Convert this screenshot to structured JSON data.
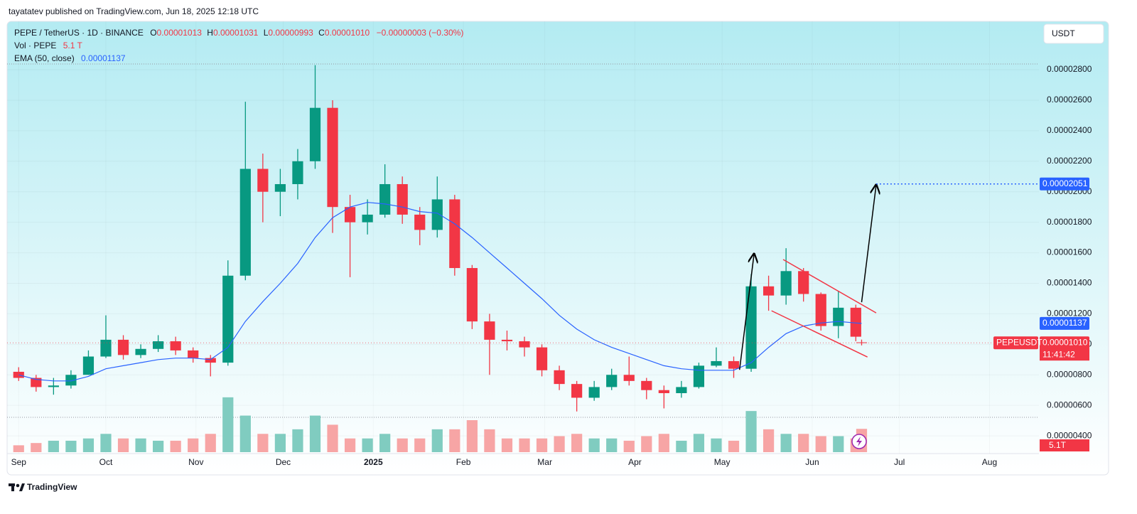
{
  "header": {
    "published": "tayatatev published on TradingView.com, Jun 18, 2025 12:18 UTC",
    "currency_button": "USDT",
    "footer_brand": "TradingView"
  },
  "legend": {
    "symbol": "PEPE / TetherUS · 1D · BINANCE",
    "ohlc": [
      {
        "label": "O",
        "value": "0.00001013"
      },
      {
        "label": "H",
        "value": "0.00001031"
      },
      {
        "label": "L",
        "value": "0.00000993"
      },
      {
        "label": "C",
        "value": "0.00001010"
      }
    ],
    "change": "−0.00000003 (−0.30%)",
    "volume_label": "Vol · PEPE",
    "volume_value": "5.1 T",
    "ema_label": "EMA (50, close)",
    "ema_value": "0.00001137"
  },
  "chart_data": {
    "type": "candlestick",
    "x": [
      "2024-09-01",
      "2024-09-07",
      "2024-09-13",
      "2024-09-19",
      "2024-09-25",
      "2024-10-01",
      "2024-10-07",
      "2024-10-13",
      "2024-10-19",
      "2024-10-25",
      "2024-10-31",
      "2024-11-06",
      "2024-11-12",
      "2024-11-18",
      "2024-11-24",
      "2024-11-30",
      "2024-12-06",
      "2024-12-12",
      "2024-12-18",
      "2024-12-24",
      "2024-12-30",
      "2025-01-05",
      "2025-01-11",
      "2025-01-17",
      "2025-01-23",
      "2025-01-29",
      "2025-02-04",
      "2025-02-10",
      "2025-02-16",
      "2025-02-22",
      "2025-02-28",
      "2025-03-06",
      "2025-03-12",
      "2025-03-18",
      "2025-03-24",
      "2025-03-30",
      "2025-04-05",
      "2025-04-11",
      "2025-04-17",
      "2025-04-23",
      "2025-04-29",
      "2025-05-05",
      "2025-05-11",
      "2025-05-17",
      "2025-05-23",
      "2025-05-29",
      "2025-06-04",
      "2025-06-10",
      "2025-06-16",
      "2025-06-18"
    ],
    "open": [
      8.2e-06,
      7.8e-06,
      7.2e-06,
      7.3e-06,
      8e-06,
      9.2e-06,
      1.03e-05,
      9.3e-06,
      9.7e-06,
      1.02e-05,
      9.6e-06,
      9.1e-06,
      8.8e-06,
      1.45e-05,
      2.15e-05,
      2e-05,
      2.05e-05,
      2.2e-05,
      2.55e-05,
      1.9e-05,
      1.8e-05,
      1.85e-05,
      2.05e-05,
      1.85e-05,
      1.75e-05,
      1.95e-05,
      1.5e-05,
      1.15e-05,
      1.03e-05,
      1.02e-05,
      9.8e-06,
      8.3e-06,
      7.4e-06,
      6.5e-06,
      7.2e-06,
      8e-06,
      7.6e-06,
      7e-06,
      6.8e-06,
      7.2e-06,
      8.6e-06,
      8.9e-06,
      8.4e-06,
      1.38e-05,
      1.32e-05,
      1.48e-05,
      1.33e-05,
      1.12e-05,
      1.24e-05,
      1.013e-05
    ],
    "high": [
      8.5e-06,
      8e-06,
      7.8e-06,
      8.3e-06,
      9.6e-06,
      1.19e-05,
      1.06e-05,
      1e-05,
      1.06e-05,
      1.05e-05,
      9.8e-06,
      9.3e-06,
      1.55e-05,
      2.59e-05,
      2.25e-05,
      2.15e-05,
      2.28e-05,
      2.83e-05,
      2.6e-05,
      1.98e-05,
      1.95e-05,
      2.18e-05,
      2.1e-05,
      1.9e-05,
      2.1e-05,
      1.98e-05,
      1.52e-05,
      1.2e-05,
      1.09e-05,
      1.05e-05,
      1e-05,
      8.6e-06,
      7.6e-06,
      7.6e-06,
      8.4e-06,
      9.2e-06,
      7.8e-06,
      7.3e-06,
      7.6e-06,
      8.8e-06,
      9.8e-06,
      9.2e-06,
      1.46e-05,
      1.45e-05,
      1.63e-05,
      1.5e-05,
      1.34e-05,
      1.35e-05,
      1.26e-05,
      1.031e-05
    ],
    "low": [
      7.6e-06,
      6.9e-06,
      6.7e-06,
      7.1e-06,
      8e-06,
      9.1e-06,
      9e-06,
      9.1e-06,
      9.5e-06,
      9.3e-06,
      8.8e-06,
      7.9e-06,
      8.6e-06,
      1.42e-05,
      1.8e-05,
      1.84e-05,
      1.95e-05,
      2.15e-05,
      1.73e-05,
      1.44e-05,
      1.72e-05,
      1.83e-05,
      1.79e-05,
      1.65e-05,
      1.7e-05,
      1.45e-05,
      1.1e-05,
      8e-06,
      9.6e-06,
      9.2e-06,
      7.9e-06,
      7e-06,
      5.6e-06,
      6.3e-06,
      7e-06,
      7.3e-06,
      6.4e-06,
      5.8e-06,
      6.5e-06,
      7.1e-06,
      8.5e-06,
      7.8e-06,
      8.2e-06,
      1.22e-05,
      1.26e-05,
      1.28e-05,
      1.09e-05,
      1.04e-05,
      1.02e-05,
      9.93e-06
    ],
    "close": [
      7.8e-06,
      7.2e-06,
      7.3e-06,
      8e-06,
      9.2e-06,
      1.03e-05,
      9.3e-06,
      9.7e-06,
      1.02e-05,
      9.6e-06,
      9.1e-06,
      8.8e-06,
      1.45e-05,
      2.15e-05,
      2e-05,
      2.05e-05,
      2.2e-05,
      2.55e-05,
      1.9e-05,
      1.8e-05,
      1.85e-05,
      2.05e-05,
      1.85e-05,
      1.75e-05,
      1.95e-05,
      1.5e-05,
      1.15e-05,
      1.03e-05,
      1.02e-05,
      9.8e-06,
      8.3e-06,
      7.4e-06,
      6.5e-06,
      7.2e-06,
      8e-06,
      7.6e-06,
      7e-06,
      6.8e-06,
      7.2e-06,
      8.6e-06,
      8.9e-06,
      8.4e-06,
      1.38e-05,
      1.32e-05,
      1.48e-05,
      1.33e-05,
      1.12e-05,
      1.24e-05,
      1.05e-05,
      1.01e-05
    ],
    "ema": [
      8e-06,
      7.7e-06,
      7.6e-06,
      7.6e-06,
      7.9e-06,
      8.4e-06,
      8.6e-06,
      8.8e-06,
      9e-06,
      9.1e-06,
      9.1e-06,
      9e-06,
      9.8e-06,
      1.15e-05,
      1.28e-05,
      1.4e-05,
      1.53e-05,
      1.7e-05,
      1.83e-05,
      1.9e-05,
      1.93e-05,
      1.92e-05,
      1.9e-05,
      1.87e-05,
      1.86e-05,
      1.79e-05,
      1.7e-05,
      1.6e-05,
      1.5e-05,
      1.4e-05,
      1.3e-05,
      1.19e-05,
      1.1e-05,
      1.03e-05,
      9.8e-06,
      9.4e-06,
      9e-06,
      8.6e-06,
      8.4e-06,
      8.3e-06,
      8.3e-06,
      8.3e-06,
      8.8e-06,
      9.8e-06,
      1.07e-05,
      1.12e-05,
      1.14e-05,
      1.15e-05,
      1.14e-05,
      1.137e-05
    ],
    "volume": [
      1.5,
      2,
      2.5,
      2.5,
      3,
      4,
      3,
      3,
      2.5,
      2.5,
      3,
      4,
      12,
      8,
      4,
      4,
      5,
      8,
      6,
      3,
      3,
      4,
      3,
      3,
      5,
      5,
      7,
      5,
      3,
      3,
      3,
      3.5,
      4,
      3,
      3,
      2.5,
      3.5,
      4,
      2.5,
      4,
      3,
      2.5,
      9,
      5,
      4,
      4,
      3.5,
      3.5,
      3,
      5.1
    ],
    "up_color": "#089981",
    "down_color": "#f23645",
    "up_volume_color": "#80ccc0",
    "down_volume_color": "#f7a5a5",
    "ema_color": "#2962ff",
    "xlim": [
      "2024-08-29",
      "2025-08-18"
    ],
    "xticks": [
      {
        "value": "2024-09-01",
        "label": "Sep"
      },
      {
        "value": "2024-10-01",
        "label": "Oct"
      },
      {
        "value": "2024-11-01",
        "label": "Nov"
      },
      {
        "value": "2024-12-01",
        "label": "Dec"
      },
      {
        "value": "2025-01-01",
        "label": "2025"
      },
      {
        "value": "2025-02-01",
        "label": "Feb"
      },
      {
        "value": "2025-03-01",
        "label": "Mar"
      },
      {
        "value": "2025-04-01",
        "label": "Apr"
      },
      {
        "value": "2025-05-01",
        "label": "May"
      },
      {
        "value": "2025-06-01",
        "label": "Jun"
      },
      {
        "value": "2025-07-01",
        "label": "Jul"
      },
      {
        "value": "2025-08-01",
        "label": "Aug"
      }
    ],
    "ylim": [
      2.84e-06,
      3.117e-05
    ],
    "yticks": [
      {
        "value": 4e-06,
        "label": "0.00000400"
      },
      {
        "value": 6e-06,
        "label": "0.00000600"
      },
      {
        "value": 8e-06,
        "label": "0.00000800"
      },
      {
        "value": 1e-05,
        "label": "0.00001000"
      },
      {
        "value": 1.2e-05,
        "label": "0.00001200"
      },
      {
        "value": 1.4e-05,
        "label": "0.00001400"
      },
      {
        "value": 1.6e-05,
        "label": "0.00001600"
      },
      {
        "value": 1.8e-05,
        "label": "0.00001800"
      },
      {
        "value": 2e-05,
        "label": "0.00002000"
      },
      {
        "value": 2.2e-05,
        "label": "0.00002200"
      },
      {
        "value": 2.4e-05,
        "label": "0.00002400"
      },
      {
        "value": 2.6e-05,
        "label": "0.00002600"
      },
      {
        "value": 2.8e-05,
        "label": "0.00002800"
      }
    ],
    "volume_lim": [
      0,
      14
    ],
    "price_tags": {
      "target": {
        "value": 2.051e-05,
        "label": "0.00002051"
      },
      "ema": "0.00001137",
      "symbol": "PEPEUSDT",
      "last": "0.00001010",
      "countdown": "11:41:42",
      "volume": "5.1T"
    },
    "drawings": {
      "channel_color": "#f23645",
      "arrow_color": "#000000",
      "target_color": "#2962ff",
      "channel": [
        {
          "x": [
            "2025-05-22",
            "2025-06-23"
          ],
          "y": [
            1.556e-05,
            1.206e-05
          ]
        },
        {
          "x": [
            "2025-05-18",
            "2025-06-20"
          ],
          "y": [
            1.22e-05,
            9.17e-06
          ]
        }
      ],
      "arrows": [
        {
          "x": [
            "2025-05-07",
            "2025-05-12"
          ],
          "y": [
            8.33e-06,
            1.593e-05
          ]
        },
        {
          "x": [
            "2025-06-18",
            "2025-06-23"
          ],
          "y": [
            1.276e-05,
            2.045e-05
          ]
        }
      ],
      "target_x": "2025-06-23"
    }
  }
}
